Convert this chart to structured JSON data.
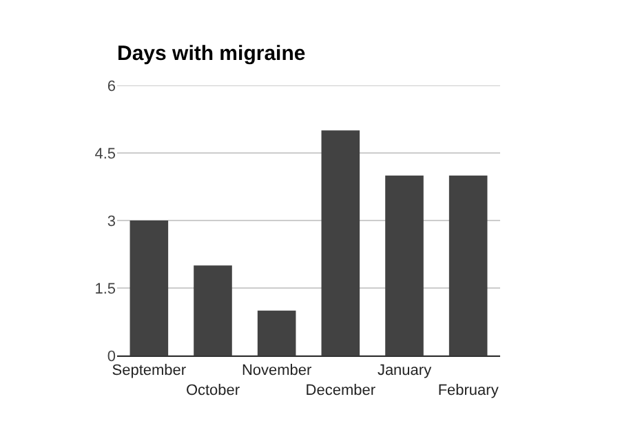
{
  "chart_data": {
    "type": "bar",
    "title": "Days with migraine",
    "categories": [
      "September",
      "October",
      "November",
      "December",
      "January",
      "February"
    ],
    "values": [
      3,
      2,
      1,
      5,
      4,
      4
    ],
    "color": "#424242",
    "ylim": [
      0,
      6
    ],
    "yticks": [
      0,
      1.5,
      3,
      4.5,
      6
    ],
    "grid": "y"
  }
}
